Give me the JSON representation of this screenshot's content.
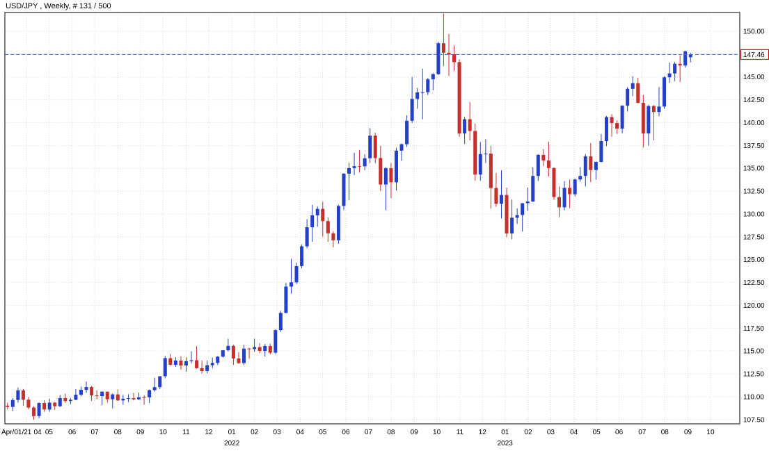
{
  "header": {
    "title": "USD/JPY , Weekly, # 131 / 500"
  },
  "chart_data": {
    "type": "candlestick",
    "symbol": "USD/JPY",
    "timeframe": "Weekly",
    "bar_position": "# 131 / 500",
    "current_price": 147.46,
    "current_price_label": "147.46",
    "colors": {
      "up": "#2540c8",
      "down": "#c5302c",
      "grid": "#d9d9d9",
      "border": "#000000",
      "price_line": "#4169e1",
      "price_tag_border": "#c00000",
      "axis_text": "#000000"
    },
    "y_axis": {
      "min": 107.03,
      "max": 152.05,
      "ticks": [
        150.0,
        147.5,
        145.0,
        142.5,
        140.0,
        137.5,
        135.0,
        132.5,
        130.0,
        127.5,
        125.0,
        122.5,
        120.0,
        117.5,
        115.0,
        112.5,
        110.0,
        107.5
      ]
    },
    "x_axis": {
      "start_label": "Apr/01/21",
      "month_ticks": [
        {
          "l": "04",
          "p": 3.6
        },
        {
          "l": "05",
          "p": 7.9
        },
        {
          "l": "06",
          "p": 12.3
        },
        {
          "l": "07",
          "p": 16.6
        },
        {
          "l": "08",
          "p": 21.0
        },
        {
          "l": "09",
          "p": 25.3
        },
        {
          "l": "10",
          "p": 29.6
        },
        {
          "l": "11",
          "p": 34.0
        },
        {
          "l": "12",
          "p": 38.3
        },
        {
          "l": "01",
          "p": 42.7
        },
        {
          "l": "02",
          "p": 47.0
        },
        {
          "l": "03",
          "p": 51.3
        },
        {
          "l": "04",
          "p": 55.7
        },
        {
          "l": "05",
          "p": 60.0
        },
        {
          "l": "06",
          "p": 64.4
        },
        {
          "l": "07",
          "p": 68.7
        },
        {
          "l": "08",
          "p": 73.0
        },
        {
          "l": "09",
          "p": 77.4
        },
        {
          "l": "10",
          "p": 81.7
        },
        {
          "l": "11",
          "p": 86.1
        },
        {
          "l": "12",
          "p": 90.4
        },
        {
          "l": "01",
          "p": 94.7
        },
        {
          "l": "02",
          "p": 99.1
        },
        {
          "l": "03",
          "p": 103.4
        },
        {
          "l": "04",
          "p": 107.8
        },
        {
          "l": "05",
          "p": 112.1
        },
        {
          "l": "06",
          "p": 116.4
        },
        {
          "l": "07",
          "p": 120.8
        },
        {
          "l": "08",
          "p": 125.1
        },
        {
          "l": "09",
          "p": 129.5
        },
        {
          "l": "10",
          "p": 133.8
        }
      ],
      "year_ticks": [
        {
          "l": "2022",
          "p": 42.7
        },
        {
          "l": "2023",
          "p": 94.7
        }
      ]
    },
    "candles": [
      [
        109.02,
        109.36,
        108.61,
        108.88
      ],
      [
        108.88,
        109.85,
        108.41,
        109.64
      ],
      [
        109.64,
        110.97,
        109.36,
        110.69
      ],
      [
        110.69,
        110.85,
        109.01,
        109.67
      ],
      [
        109.67,
        109.96,
        108.61,
        108.81
      ],
      [
        108.81,
        108.95,
        107.48,
        107.88
      ],
      [
        107.88,
        109.39,
        107.64,
        109.31
      ],
      [
        109.31,
        109.61,
        108.34,
        108.6
      ],
      [
        108.6,
        109.79,
        108.34,
        109.35
      ],
      [
        109.35,
        109.41,
        108.56,
        108.96
      ],
      [
        108.96,
        110.2,
        108.87,
        109.85
      ],
      [
        109.85,
        110.33,
        109.33,
        109.52
      ],
      [
        109.52,
        109.84,
        109.19,
        109.66
      ],
      [
        109.66,
        110.82,
        109.61,
        110.21
      ],
      [
        110.21,
        111.11,
        110.04,
        110.75
      ],
      [
        110.75,
        111.66,
        110.42,
        111.05
      ],
      [
        111.05,
        111.19,
        109.53,
        110.14
      ],
      [
        110.14,
        110.7,
        109.72,
        110.07
      ],
      [
        110.07,
        110.59,
        109.07,
        110.55
      ],
      [
        110.55,
        110.58,
        109.36,
        109.72
      ],
      [
        109.72,
        110.36,
        108.72,
        110.25
      ],
      [
        110.25,
        110.8,
        109.54,
        109.59
      ],
      [
        109.59,
        110.23,
        109.11,
        109.78
      ],
      [
        109.78,
        110.27,
        109.41,
        109.84
      ],
      [
        109.84,
        110.42,
        109.59,
        109.71
      ],
      [
        109.71,
        110.45,
        109.63,
        109.94
      ],
      [
        109.94,
        110.16,
        109.11,
        109.93
      ],
      [
        109.93,
        110.79,
        109.31,
        110.72
      ],
      [
        110.72,
        112.08,
        110.56,
        111.05
      ],
      [
        111.05,
        112.25,
        110.82,
        112.24
      ],
      [
        112.24,
        114.47,
        112.0,
        114.22
      ],
      [
        114.22,
        114.7,
        113.41,
        113.49
      ],
      [
        113.49,
        114.31,
        113.26,
        113.95
      ],
      [
        113.95,
        114.44,
        112.95,
        113.41
      ],
      [
        113.41,
        114.3,
        112.73,
        113.89
      ],
      [
        113.89,
        114.97,
        113.64,
        113.99
      ],
      [
        113.99,
        115.52,
        113.05,
        113.12
      ],
      [
        113.12,
        113.96,
        112.53,
        112.81
      ],
      [
        112.81,
        113.95,
        112.57,
        113.44
      ],
      [
        113.44,
        114.27,
        113.14,
        113.7
      ],
      [
        113.7,
        114.44,
        113.47,
        114.38
      ],
      [
        114.38,
        115.08,
        114.27,
        115.08
      ],
      [
        115.08,
        116.35,
        114.95,
        115.56
      ],
      [
        115.56,
        115.68,
        113.48,
        114.19
      ],
      [
        114.19,
        114.88,
        113.59,
        113.68
      ],
      [
        113.68,
        115.69,
        113.46,
        115.26
      ],
      [
        115.26,
        115.36,
        114.15,
        115.21
      ],
      [
        115.21,
        116.34,
        114.92,
        115.43
      ],
      [
        115.43,
        115.87,
        114.78,
        115.01
      ],
      [
        115.01,
        115.77,
        114.4,
        115.55
      ],
      [
        115.55,
        115.8,
        114.64,
        114.82
      ],
      [
        114.82,
        117.36,
        114.66,
        117.29
      ],
      [
        117.29,
        119.4,
        117.09,
        119.17
      ],
      [
        119.17,
        122.44,
        119.13,
        122.05
      ],
      [
        122.05,
        125.1,
        121.28,
        122.52
      ],
      [
        122.52,
        124.68,
        122.33,
        124.3
      ],
      [
        124.3,
        126.68,
        124.05,
        126.46
      ],
      [
        126.46,
        129.43,
        126.25,
        128.55
      ],
      [
        128.55,
        131.0,
        126.95,
        129.85
      ],
      [
        129.85,
        130.81,
        128.62,
        130.56
      ],
      [
        130.56,
        131.35,
        127.52,
        129.22
      ],
      [
        129.22,
        129.62,
        126.96,
        127.88
      ],
      [
        127.88,
        128.11,
        126.36,
        127.12
      ],
      [
        127.12,
        130.99,
        126.73,
        130.88
      ],
      [
        130.88,
        134.47,
        130.42,
        134.41
      ],
      [
        134.41,
        135.59,
        131.5,
        135.02
      ],
      [
        135.02,
        136.71,
        134.27,
        135.23
      ],
      [
        135.23,
        137.0,
        134.53,
        135.22
      ],
      [
        135.22,
        136.56,
        134.78,
        136.1
      ],
      [
        136.1,
        139.39,
        135.57,
        138.57
      ],
      [
        138.57,
        138.88,
        135.57,
        136.12
      ],
      [
        136.12,
        137.46,
        132.51,
        133.22
      ],
      [
        133.22,
        135.12,
        130.41,
        135.01
      ],
      [
        135.01,
        135.58,
        131.74,
        133.47
      ],
      [
        133.47,
        137.23,
        132.56,
        136.93
      ],
      [
        136.93,
        137.71,
        135.81,
        137.64
      ],
      [
        137.64,
        140.8,
        137.34,
        140.2
      ],
      [
        140.2,
        144.99,
        139.96,
        142.59
      ],
      [
        142.59,
        143.8,
        141.51,
        143.31
      ],
      [
        143.31,
        145.9,
        140.36,
        143.32
      ],
      [
        143.32,
        144.9,
        143.01,
        144.74
      ],
      [
        144.74,
        145.44,
        143.53,
        145.3
      ],
      [
        145.3,
        148.86,
        145.22,
        148.69
      ],
      [
        148.69,
        151.95,
        146.2,
        147.65
      ],
      [
        147.65,
        149.7,
        145.1,
        147.47
      ],
      [
        147.47,
        148.45,
        145.67,
        146.62
      ],
      [
        146.62,
        146.93,
        138.46,
        138.81
      ],
      [
        138.81,
        140.63,
        137.67,
        140.37
      ],
      [
        140.37,
        142.25,
        138.05,
        139.08
      ],
      [
        139.08,
        139.89,
        133.62,
        134.31
      ],
      [
        134.31,
        137.86,
        133.62,
        136.56
      ],
      [
        136.56,
        138.18,
        135.57,
        136.6
      ],
      [
        136.6,
        137.48,
        130.57,
        132.84
      ],
      [
        132.84,
        134.5,
        130.77,
        131.11
      ],
      [
        131.11,
        134.78,
        129.51,
        132.08
      ],
      [
        132.08,
        132.88,
        127.46,
        127.87
      ],
      [
        127.87,
        131.58,
        127.22,
        129.59
      ],
      [
        129.59,
        130.62,
        128.91,
        129.88
      ],
      [
        129.88,
        131.2,
        128.08,
        131.18
      ],
      [
        131.18,
        132.9,
        130.34,
        131.36
      ],
      [
        131.36,
        135.12,
        131.32,
        134.16
      ],
      [
        134.16,
        136.55,
        133.59,
        136.47
      ],
      [
        136.47,
        137.1,
        135.26,
        135.85
      ],
      [
        135.85,
        137.91,
        134.12,
        135.03
      ],
      [
        135.03,
        135.11,
        131.56,
        131.85
      ],
      [
        131.85,
        133.01,
        129.64,
        130.73
      ],
      [
        130.73,
        133.6,
        130.41,
        132.86
      ],
      [
        132.86,
        133.77,
        130.63,
        132.16
      ],
      [
        132.16,
        133.87,
        131.91,
        133.78
      ],
      [
        133.78,
        135.13,
        133.54,
        134.16
      ],
      [
        134.16,
        136.56,
        133.01,
        136.3
      ],
      [
        136.3,
        137.77,
        133.5,
        134.81
      ],
      [
        134.81,
        135.76,
        133.74,
        135.7
      ],
      [
        135.7,
        138.75,
        135.66,
        137.98
      ],
      [
        137.98,
        140.73,
        137.42,
        140.6
      ],
      [
        140.6,
        140.93,
        138.44,
        139.95
      ],
      [
        139.95,
        140.25,
        138.76,
        139.34
      ],
      [
        139.34,
        141.91,
        138.82,
        141.85
      ],
      [
        141.85,
        143.87,
        141.21,
        143.7
      ],
      [
        143.7,
        145.07,
        142.9,
        144.31
      ],
      [
        144.31,
        144.91,
        142.07,
        142.17
      ],
      [
        142.17,
        143.01,
        137.25,
        138.81
      ],
      [
        138.81,
        141.96,
        137.46,
        141.81
      ],
      [
        141.81,
        141.93,
        138.07,
        141.16
      ],
      [
        141.16,
        143.89,
        140.69,
        141.76
      ],
      [
        141.76,
        145.07,
        141.52,
        144.96
      ],
      [
        144.96,
        146.56,
        144.35,
        145.38
      ],
      [
        145.38,
        146.64,
        144.54,
        146.44
      ],
      [
        146.44,
        147.37,
        144.44,
        146.25
      ],
      [
        146.25,
        147.87,
        146.01,
        147.8
      ],
      [
        147.16,
        147.65,
        146.59,
        147.46
      ]
    ]
  }
}
